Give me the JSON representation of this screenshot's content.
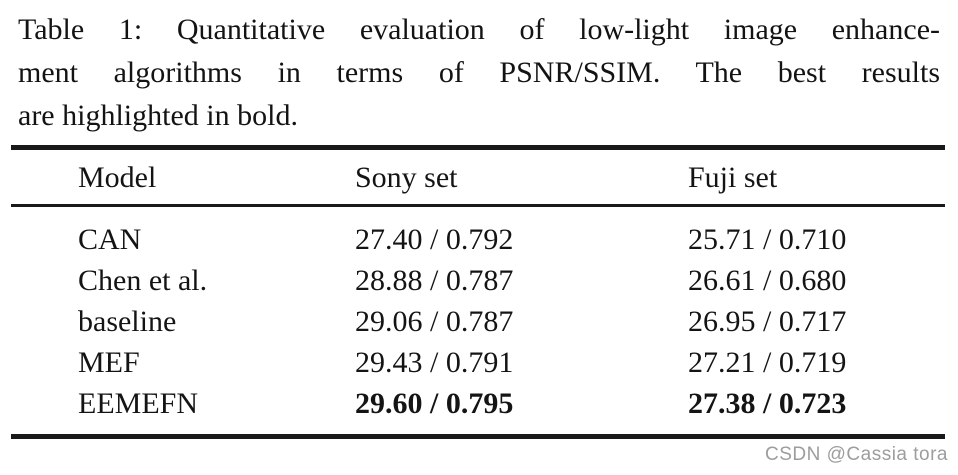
{
  "page": {
    "background_color": "#ffffff",
    "text_color": "#141414",
    "rule_color": "#191919"
  },
  "caption": {
    "lines": [
      "Table 1: Quantitative evaluation of low-light image enhance-",
      "ment algorithms in terms of PSNR/SSIM. The best results",
      "are highlighted in bold."
    ]
  },
  "table": {
    "columns": [
      "Model",
      "Sony set",
      "Fuji set"
    ],
    "rows": [
      {
        "model": "CAN",
        "sony": "27.40 / 0.792",
        "fuji": "25.71 / 0.710",
        "best": false
      },
      {
        "model": "Chen et al.",
        "sony": "28.88 / 0.787",
        "fuji": "26.61 / 0.680",
        "best": false
      },
      {
        "model": "baseline",
        "sony": "29.06 / 0.787",
        "fuji": "26.95 / 0.717",
        "best": false
      },
      {
        "model": "MEF",
        "sony": "29.43 / 0.791",
        "fuji": "27.21 / 0.719",
        "best": false
      },
      {
        "model": "EEMEFN",
        "sony": "29.60 / 0.795",
        "fuji": "27.38 / 0.723",
        "best": true
      }
    ]
  },
  "watermark": {
    "text": "CSDN @Cassia tora",
    "color": "#9d9d9d"
  }
}
